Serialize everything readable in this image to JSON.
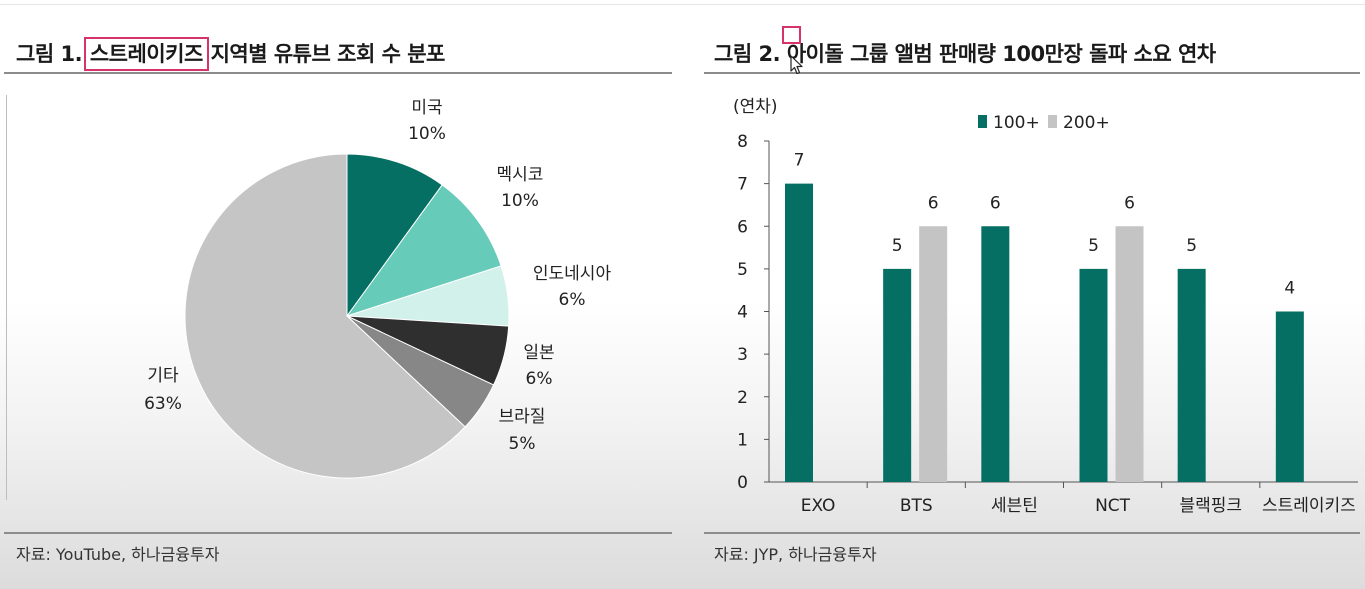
{
  "left_figure": {
    "title_prefix": "그림 1.",
    "title_highlight": "스트레이키즈",
    "title_suffix": "지역별 유튜브 조회 수 분포",
    "source": "자료: YouTube, 하나금융투자"
  },
  "right_figure": {
    "title": "그림 2. 아이돌 그룹 앨범 판매량 100만장 돌파 소요 연차",
    "source": "자료: JYP, 하나금융투자"
  },
  "chart_data": [
    {
      "type": "pie",
      "slices": [
        {
          "label": "미국",
          "value": 10,
          "value_label": "10%",
          "color": "#046f62"
        },
        {
          "label": "멕시코",
          "value": 10,
          "value_label": "10%",
          "color": "#66cbb8"
        },
        {
          "label": "인도네시아",
          "value": 6,
          "value_label": "6%",
          "color": "#d2f1ea"
        },
        {
          "label": "일본",
          "value": 6,
          "value_label": "6%",
          "color": "#2f2f2f"
        },
        {
          "label": "브라질",
          "value": 5,
          "value_label": "5%",
          "color": "#878787"
        },
        {
          "label": "기타",
          "value": 63,
          "value_label": "63%",
          "color": "#c5c5c5"
        }
      ]
    },
    {
      "type": "bar",
      "ylabel": "(연차)",
      "ylim": [
        0,
        8
      ],
      "yticks": [
        "0",
        "1",
        "2",
        "3",
        "4",
        "5",
        "6",
        "7",
        "8"
      ],
      "categories": [
        "EXO",
        "BTS",
        "세븐틴",
        "NCT",
        "블랙핑크",
        "스트레이키즈"
      ],
      "series": [
        {
          "name": "100+",
          "color": "#046f62",
          "values": [
            7,
            5,
            6,
            5,
            5,
            4
          ]
        },
        {
          "name": "200+",
          "color": "#c4c4c4",
          "values": [
            null,
            6,
            null,
            6,
            null,
            null
          ]
        }
      ],
      "legend_position": "top"
    }
  ]
}
